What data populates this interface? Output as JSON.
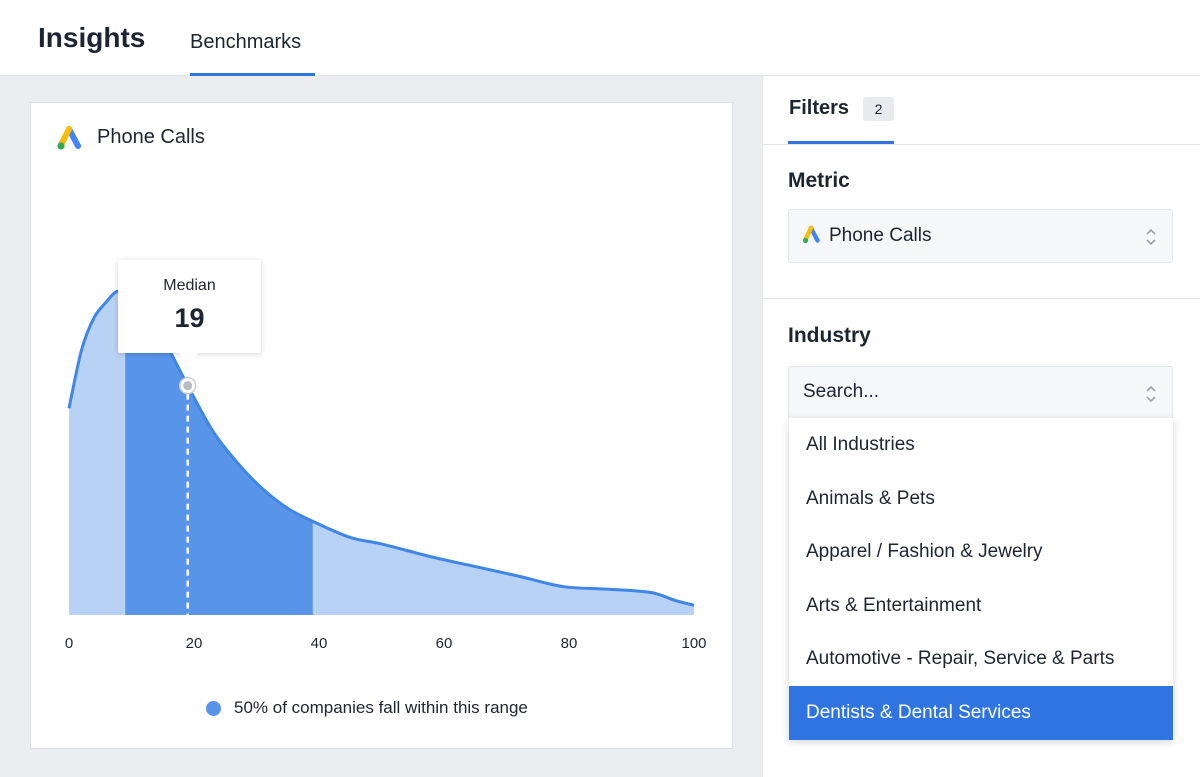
{
  "header": {
    "title": "Insights",
    "tabs": [
      {
        "label": "Benchmarks",
        "active": true
      }
    ]
  },
  "card": {
    "title": "Phone Calls",
    "icon": "google-ads-icon",
    "median": {
      "label": "Median",
      "value": "19"
    },
    "legend": "50% of companies fall within this range"
  },
  "chart_data": {
    "type": "area",
    "x_ticks": [
      "0",
      "20",
      "40",
      "60",
      "80",
      "100"
    ],
    "xlim": [
      0,
      100
    ],
    "median": 19,
    "range_highlighted": [
      9,
      39
    ],
    "series": [
      {
        "x": [
          0,
          2,
          4,
          6,
          7.5,
          9,
          12,
          15,
          19,
          23,
          27,
          31,
          35,
          39,
          45,
          50,
          58,
          65,
          72,
          79,
          86,
          93,
          97,
          100
        ],
        "y": [
          0.64,
          0.82,
          0.92,
          0.97,
          1.0,
          1.0,
          0.96,
          0.86,
          0.71,
          0.57,
          0.47,
          0.39,
          0.33,
          0.29,
          0.24,
          0.22,
          0.18,
          0.15,
          0.12,
          0.088,
          0.08,
          0.07,
          0.045,
          0.03
        ]
      }
    ],
    "colors": {
      "line": "#3f86e6",
      "range_fill": "#5894e8",
      "area_fill": "#b8d2f5"
    }
  },
  "panel": {
    "filters_tab": {
      "label": "Filters",
      "badge": "2"
    },
    "metric": {
      "heading": "Metric",
      "value": "Phone Calls",
      "icon": "google-ads-icon"
    },
    "industry": {
      "heading": "Industry",
      "search_placeholder": "Search...",
      "options": [
        {
          "label": "All Industries",
          "selected": false
        },
        {
          "label": "Animals & Pets",
          "selected": false
        },
        {
          "label": "Apparel / Fashion & Jewelry",
          "selected": false
        },
        {
          "label": "Arts & Entertainment",
          "selected": false
        },
        {
          "label": "Automotive - Repair, Service & Parts",
          "selected": false
        },
        {
          "label": "Dentists & Dental Services",
          "selected": true
        }
      ]
    }
  },
  "colors": {
    "accent": "#2f74e0",
    "ads_blue": "#4285f4",
    "ads_yellow": "#fbbc04",
    "ads_green": "#34a853"
  }
}
